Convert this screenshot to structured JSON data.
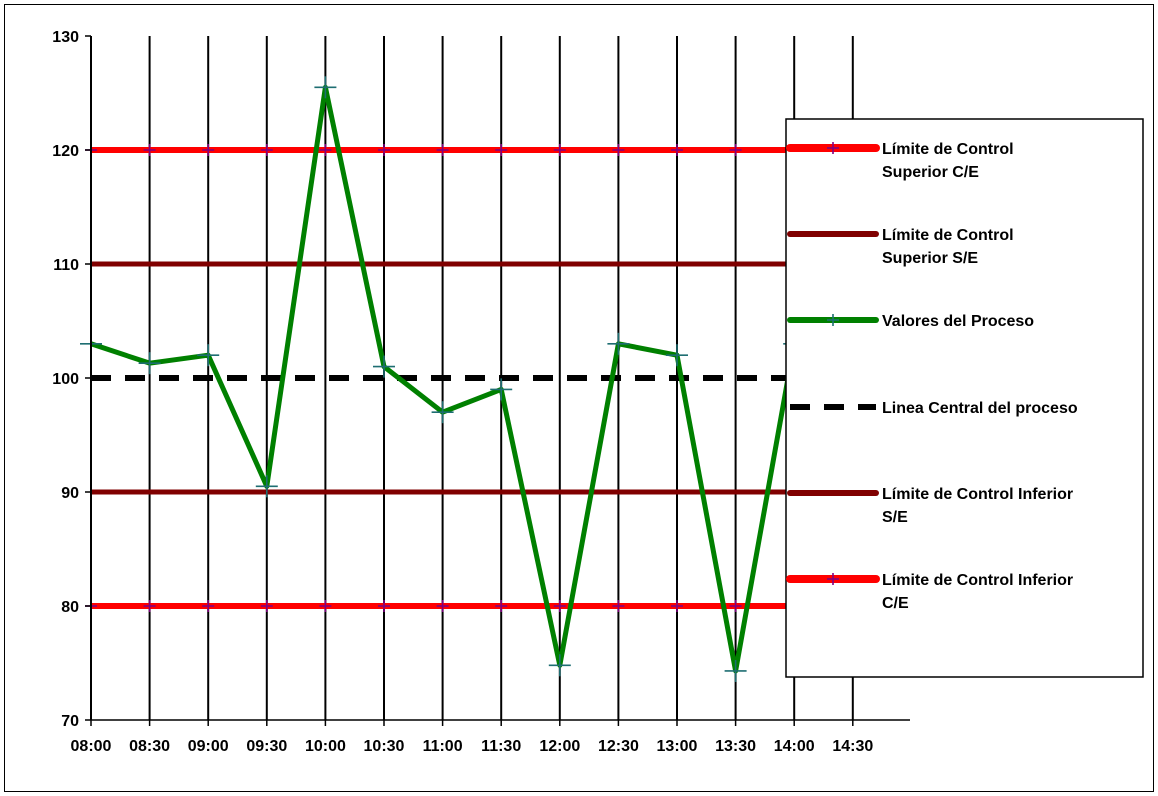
{
  "chart_data": {
    "type": "line",
    "title": "",
    "xlabel": "",
    "ylabel": "",
    "ylim": [
      70,
      130
    ],
    "yticks": [
      70,
      80,
      90,
      100,
      110,
      120,
      130
    ],
    "grid": "vertical",
    "legend_position": "right",
    "categories": [
      "08:00",
      "08:30",
      "09:00",
      "09:30",
      "10:00",
      "10:30",
      "11:00",
      "11:30",
      "12:00",
      "12:30",
      "13:00",
      "13:30",
      "14:00",
      "14:30"
    ],
    "series": [
      {
        "name": "Límite de Control Superior C/E",
        "color": "#ff0000",
        "style": "solid",
        "marker": "plus",
        "legend_lines": [
          "Límite de Control",
          "Superior C/E"
        ],
        "values": [
          120,
          120,
          120,
          120,
          120,
          120,
          120,
          120,
          120,
          120,
          120,
          120,
          120,
          120
        ]
      },
      {
        "name": "Límite de Control Superior S/E",
        "color": "#800000",
        "style": "solid",
        "marker": "none",
        "legend_lines": [
          "Límite de Control",
          "Superior S/E"
        ],
        "values": [
          110,
          110,
          110,
          110,
          110,
          110,
          110,
          110,
          110,
          110,
          110,
          110,
          110,
          110
        ]
      },
      {
        "name": "Valores del Proceso",
        "color": "#008000",
        "style": "solid",
        "marker": "plus",
        "legend_lines": [
          "Valores del Proceso"
        ],
        "values": [
          103,
          101.3,
          102,
          90.5,
          125.5,
          101,
          97,
          99,
          74.8,
          103,
          102,
          74.3,
          103,
          102
        ]
      },
      {
        "name": "Linea Central del proceso",
        "color": "#000000",
        "style": "dashed",
        "marker": "none",
        "legend_lines": [
          "Linea Central del proceso"
        ],
        "values": [
          100,
          100,
          100,
          100,
          100,
          100,
          100,
          100,
          100,
          100,
          100,
          100,
          100,
          100
        ]
      },
      {
        "name": "Límite de Control Inferior S/E",
        "color": "#800000",
        "style": "solid",
        "marker": "none",
        "legend_lines": [
          "Límite de Control Inferior",
          "S/E"
        ],
        "values": [
          90,
          90,
          90,
          90,
          90,
          90,
          90,
          90,
          90,
          90,
          90,
          90,
          90,
          90
        ]
      },
      {
        "name": "Límite de Control Inferior C/E",
        "color": "#ff0000",
        "style": "solid",
        "marker": "plus",
        "legend_lines": [
          "Límite de Control Inferior",
          "C/E"
        ],
        "values": [
          80,
          80,
          80,
          80,
          80,
          80,
          80,
          80,
          80,
          80,
          80,
          80,
          80,
          80
        ]
      }
    ]
  }
}
